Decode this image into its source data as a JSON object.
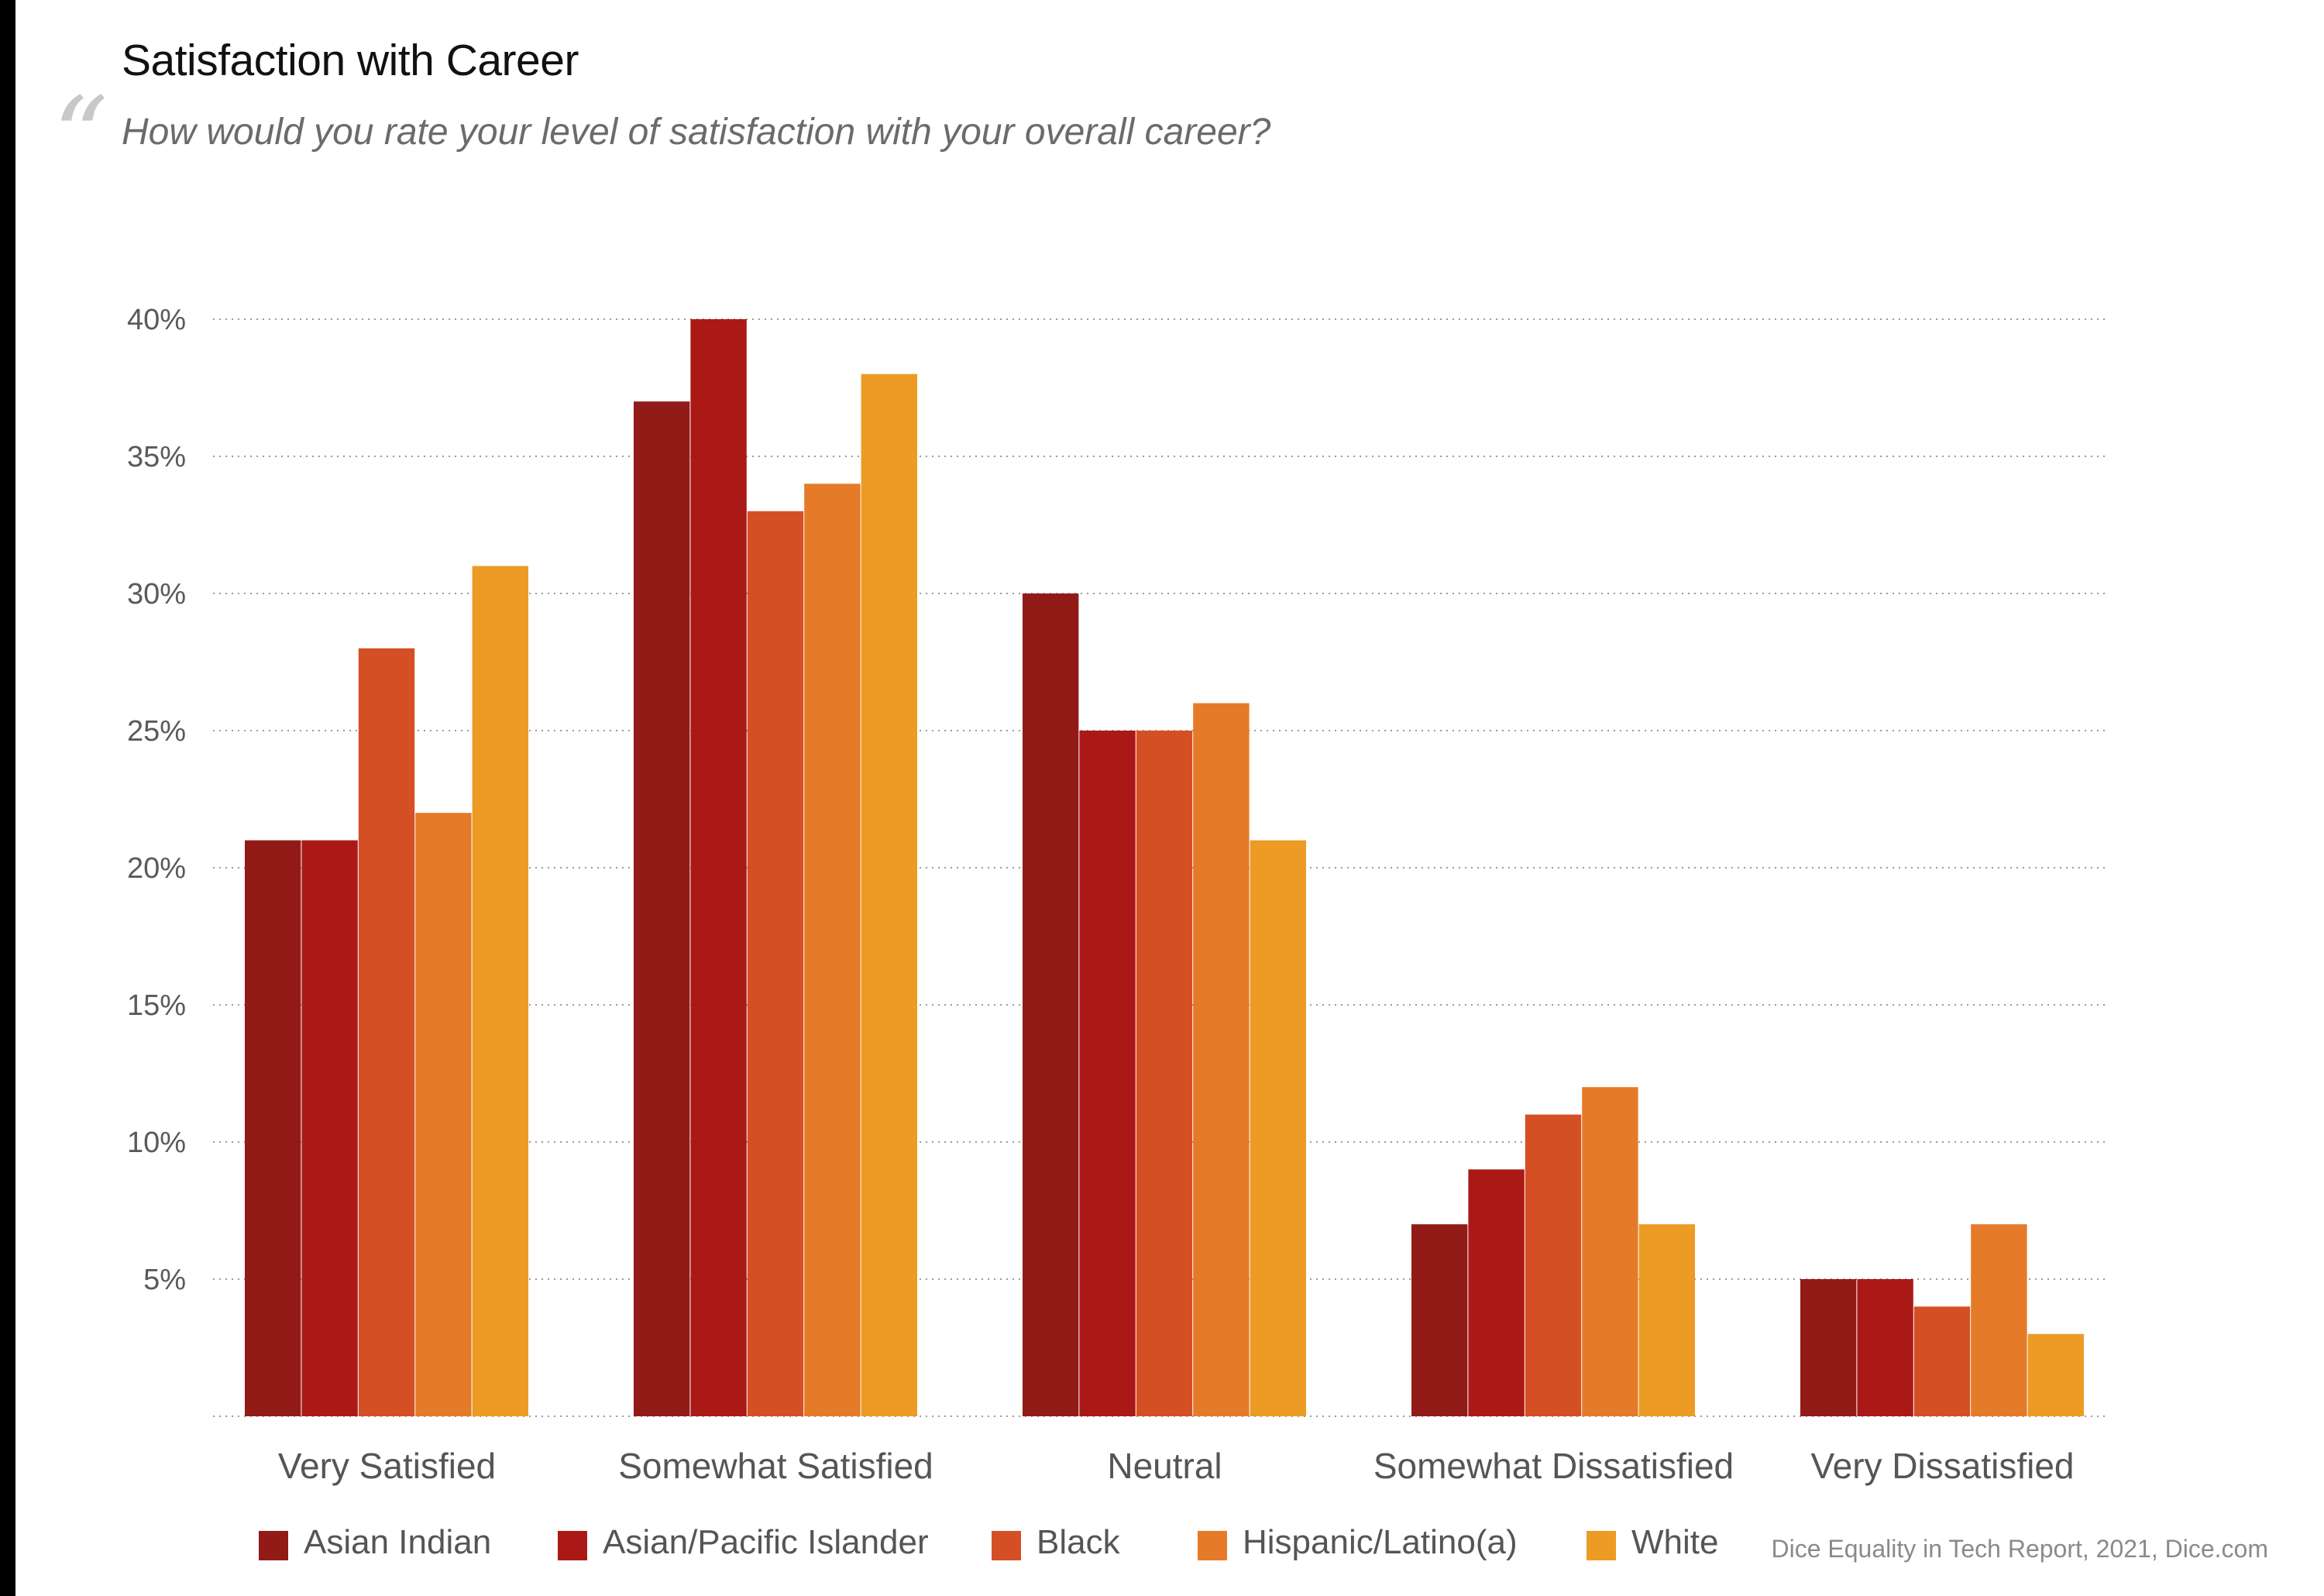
{
  "header": {
    "title": "Satisfaction with Career",
    "subtitle": "How would you rate your level of satisfaction with your overall career?",
    "quote_glyph": "“"
  },
  "source": "Dice Equality in Tech Report, 2021, Dice.com",
  "colors": {
    "Asian Indian": "#921b18",
    "Asian/Pacific Islander": "#ab1916",
    "Black": "#d54f25",
    "Hispanic/Latino(a)": "#e57a28",
    "White": "#ec9b25",
    "grid": "#9a9a9a",
    "background": "#ffffff"
  },
  "chart_data": {
    "type": "bar",
    "title": "Satisfaction with Career",
    "subtitle": "How would you rate your level of satisfaction with your overall career?",
    "xlabel": "",
    "ylabel": "",
    "ylim": [
      0,
      40
    ],
    "yticks": [
      5,
      10,
      15,
      20,
      25,
      30,
      35,
      40
    ],
    "ytick_labels": [
      "5%",
      "10%",
      "15%",
      "20%",
      "25%",
      "30%",
      "35%",
      "40%"
    ],
    "grid": "horizontal dotted",
    "legend_position": "bottom",
    "categories": [
      "Very Satisfied",
      "Somewhat Satisfied",
      "Neutral",
      "Somewhat Dissatisfied",
      "Very Dissatisfied"
    ],
    "series": [
      {
        "name": "Asian Indian",
        "values": [
          21,
          37,
          30,
          7,
          5
        ]
      },
      {
        "name": "Asian/Pacific Islander",
        "values": [
          21,
          40,
          25,
          9,
          5
        ]
      },
      {
        "name": "Black",
        "values": [
          28,
          33,
          25,
          11,
          4
        ]
      },
      {
        "name": "Hispanic/Latino(a)",
        "values": [
          22,
          34,
          26,
          12,
          7
        ]
      },
      {
        "name": "White",
        "values": [
          31,
          38,
          21,
          7,
          3
        ]
      }
    ]
  }
}
